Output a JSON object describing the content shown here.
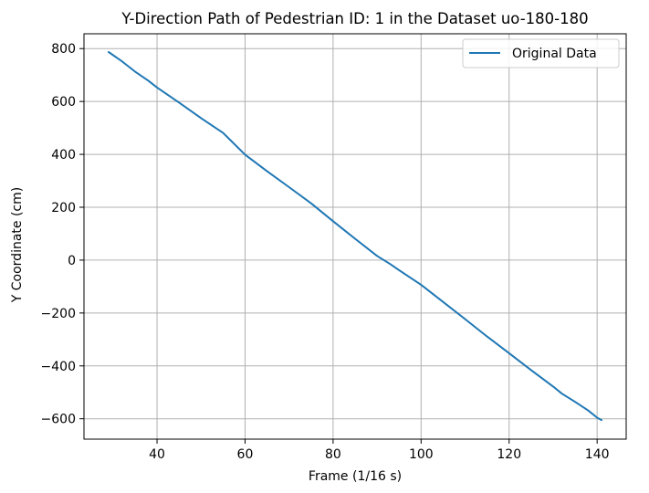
{
  "chart_data": {
    "type": "line",
    "title": "Y-Direction Path of Pedestrian ID: 1 in the Dataset uo-180-180",
    "xlabel": "Frame (1/16 s)",
    "ylabel": "Y Coordinate (cm)",
    "xlim": [
      23.4,
      146.6
    ],
    "ylim": [
      -677,
      856
    ],
    "xticks": [
      40,
      60,
      80,
      100,
      120,
      140
    ],
    "yticks": [
      -600,
      -400,
      -200,
      0,
      200,
      400,
      600,
      800
    ],
    "grid": true,
    "legend_position": "top-right",
    "series": [
      {
        "name": "Original Data",
        "color": "#1f77b4",
        "x": [
          29,
          32,
          35,
          38,
          40,
          45,
          50,
          55,
          60,
          65,
          70,
          75,
          80,
          85,
          90,
          93,
          95,
          100,
          105,
          110,
          115,
          120,
          125,
          130,
          132,
          135,
          138,
          140,
          141
        ],
        "y": [
          787,
          752,
          713,
          679,
          653,
          596,
          537,
          481,
          399,
          336,
          276,
          215,
          147,
          81,
          16,
          -15,
          -38,
          -93,
          -158,
          -223,
          -289,
          -352,
          -416,
          -478,
          -505,
          -536,
          -569,
          -596,
          -605
        ]
      }
    ]
  }
}
